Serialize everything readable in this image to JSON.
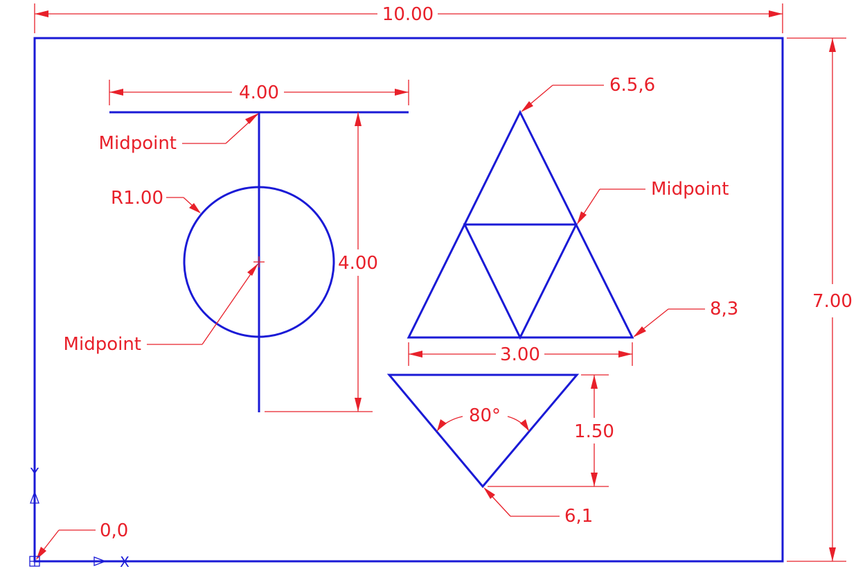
{
  "dimensions": {
    "overall_width": "10.00",
    "overall_height": "7.00",
    "top_line_length": "4.00",
    "vertical_line_length": "4.00",
    "triangle_base": "3.00",
    "inverted_triangle_height": "1.50",
    "angle": "80°",
    "circle_radius": "R1.00"
  },
  "callouts": {
    "midpoint_top": "Midpoint",
    "midpoint_center": "Midpoint",
    "midpoint_triangle": "Midpoint",
    "apex_coord": "6.5,6",
    "right_coord": "8,3",
    "bottom_coord": "6,1",
    "origin_coord": "0,0"
  },
  "ucs_icon": {
    "x_label": "X",
    "y_label": "Y"
  },
  "colors": {
    "geometry": "#1a1ad6",
    "dimensions": "#e8202a",
    "background": "#ffffff"
  }
}
